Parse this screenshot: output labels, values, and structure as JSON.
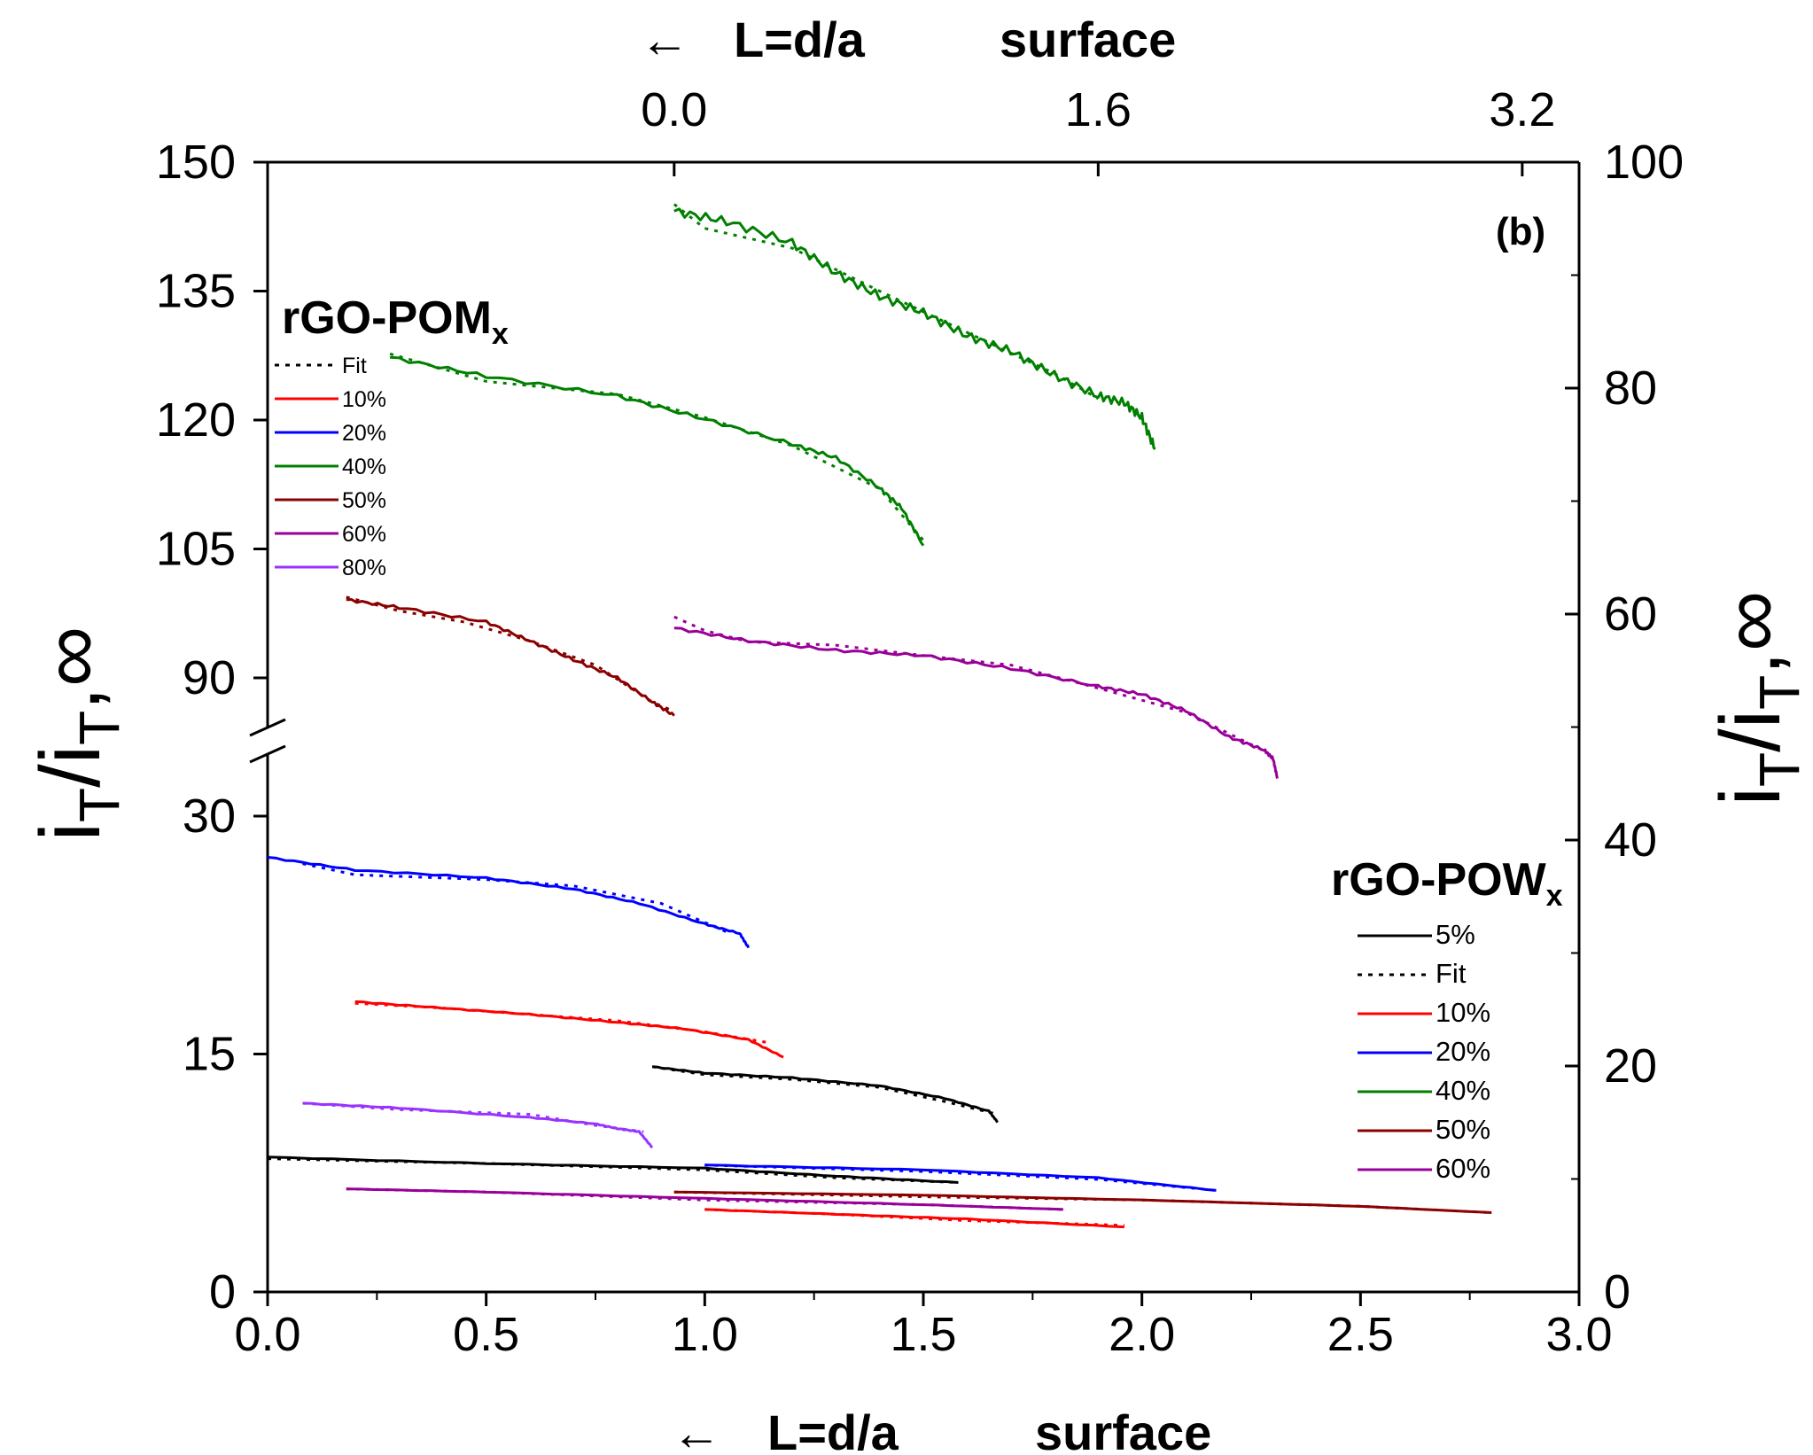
{
  "chart_data": {
    "type": "line",
    "panel_label": "(b)",
    "bottom_axis": {
      "arrow": "←",
      "label_left": "L=d/a",
      "label_right": "surface",
      "ticks": [
        "0.0",
        "0.5",
        "1.0",
        "1.5",
        "2.0",
        "2.5",
        "3.0"
      ],
      "xlim": [
        0,
        3
      ]
    },
    "top_axis": {
      "arrow": "←",
      "label_left": "L=d/a",
      "label_right": "surface",
      "ticks": [
        "0.0",
        "1.6",
        "3.2"
      ]
    },
    "left_axis": {
      "label_main": "i",
      "label_sub": "T",
      "label_mid": "/i",
      "label_sub2": "T",
      "label_end": ",∞",
      "lower_ticks": [
        "0",
        "15",
        "30"
      ],
      "upper_ticks": [
        "90",
        "105",
        "120",
        "135",
        "150"
      ],
      "lower_range": [
        0,
        30
      ],
      "upper_range": [
        90,
        150
      ],
      "break": true
    },
    "right_axis": {
      "label_main": "i",
      "label_sub": "T",
      "label_mid": "/i",
      "label_sub2": "T",
      "label_end": ",∞",
      "ticks": [
        "0",
        "20",
        "40",
        "60",
        "80",
        "100"
      ],
      "range": [
        0,
        100
      ]
    },
    "legend_pom": {
      "title": "rGO-POM",
      "subscript": "x",
      "entries": [
        {
          "label": "Fit",
          "style": "dotted",
          "color": "#000000"
        },
        {
          "label": "10%",
          "style": "solid",
          "color": "#ff0000"
        },
        {
          "label": "20%",
          "style": "solid",
          "color": "#0000ff"
        },
        {
          "label": "40%",
          "style": "solid",
          "color": "#008000"
        },
        {
          "label": "50%",
          "style": "solid",
          "color": "#8b0000"
        },
        {
          "label": "60%",
          "style": "solid",
          "color": "#990099"
        },
        {
          "label": "80%",
          "style": "solid",
          "color": "#9933ff"
        }
      ]
    },
    "legend_pow": {
      "title": "rGO-POW",
      "subscript": "x",
      "entries": [
        {
          "label": "5%",
          "style": "solid",
          "color": "#000000"
        },
        {
          "label": "Fit",
          "style": "dotted",
          "color": "#000000"
        },
        {
          "label": "10%",
          "style": "solid",
          "color": "#ff0000"
        },
        {
          "label": "20%",
          "style": "solid",
          "color": "#0000ff"
        },
        {
          "label": "40%",
          "style": "solid",
          "color": "#008000"
        },
        {
          "label": "50%",
          "style": "solid",
          "color": "#8b0000"
        },
        {
          "label": "60%",
          "style": "solid",
          "color": "#990099"
        }
      ]
    },
    "series": [
      {
        "name": "POM 40% (top)",
        "color": "#008000",
        "axis": "upper",
        "wobble": 1.0,
        "points": [
          [
            0.93,
            144.3
          ],
          [
            1.05,
            143.1
          ],
          [
            1.2,
            140.6
          ],
          [
            1.3,
            137.1
          ],
          [
            1.4,
            134.4
          ],
          [
            1.5,
            132.5
          ],
          [
            1.6,
            129.8
          ],
          [
            1.7,
            128.0
          ],
          [
            1.8,
            125.2
          ],
          [
            1.9,
            122.8
          ],
          [
            1.96,
            122.0
          ],
          [
            2.0,
            120.3
          ],
          [
            2.03,
            116.6
          ]
        ],
        "fit": [
          [
            0.93,
            145.1
          ],
          [
            1.0,
            142.3
          ],
          [
            1.2,
            140.0
          ],
          [
            1.4,
            135.0
          ],
          [
            1.6,
            130.2
          ],
          [
            1.8,
            125.4
          ],
          [
            1.9,
            122.5
          ]
        ]
      },
      {
        "name": "POM 40% (bottom)",
        "color": "#008000",
        "axis": "upper",
        "wobble": 0.4,
        "points": [
          [
            0.28,
            127.3
          ],
          [
            0.5,
            125.1
          ],
          [
            0.8,
            122.8
          ],
          [
            1.0,
            120.1
          ],
          [
            1.2,
            117.2
          ],
          [
            1.3,
            115.6
          ],
          [
            1.4,
            112.1
          ],
          [
            1.45,
            109.8
          ],
          [
            1.5,
            105.4
          ]
        ],
        "fit": [
          [
            0.28,
            127.7
          ],
          [
            0.5,
            124.5
          ],
          [
            0.8,
            123.0
          ],
          [
            1.0,
            120.3
          ],
          [
            1.2,
            117.0
          ],
          [
            1.4,
            112.0
          ],
          [
            1.5,
            106.0
          ]
        ]
      },
      {
        "name": "POM 50%",
        "color": "#8b0000",
        "axis": "upper",
        "wobble": 0.3,
        "points": [
          [
            0.18,
            99.1
          ],
          [
            0.3,
            98.2
          ],
          [
            0.5,
            96.5
          ],
          [
            0.6,
            94.3
          ],
          [
            0.7,
            92.1
          ],
          [
            0.8,
            90.0
          ],
          [
            0.88,
            87.2
          ],
          [
            0.93,
            85.6
          ]
        ],
        "fit": [
          [
            0.18,
            99.4
          ],
          [
            0.3,
            97.8
          ],
          [
            0.45,
            96.5
          ],
          [
            0.6,
            94.3
          ],
          [
            0.75,
            91.5
          ],
          [
            0.88,
            87.2
          ],
          [
            0.93,
            86.1
          ]
        ]
      },
      {
        "name": "POM 60%",
        "color": "#990099",
        "axis": "upper",
        "wobble": 0.3,
        "points": [
          [
            0.93,
            95.8
          ],
          [
            1.1,
            94.3
          ],
          [
            1.3,
            93.2
          ],
          [
            1.5,
            92.6
          ],
          [
            1.7,
            91.1
          ],
          [
            1.9,
            89.0
          ],
          [
            2.0,
            88.1
          ],
          [
            2.1,
            86.2
          ],
          [
            2.2,
            83.1
          ],
          [
            2.28,
            81.6
          ],
          [
            2.3,
            80.6
          ],
          [
            2.31,
            78.3
          ]
        ],
        "fit": [
          [
            0.93,
            97.1
          ],
          [
            1.0,
            95.5
          ],
          [
            1.1,
            94.2
          ],
          [
            1.3,
            93.8
          ],
          [
            1.5,
            92.6
          ],
          [
            1.7,
            91.5
          ],
          [
            1.9,
            88.8
          ],
          [
            2.1,
            86.0
          ],
          [
            2.28,
            81.5
          ]
        ]
      },
      {
        "name": "POM 20%",
        "color": "#0000ff",
        "axis": "lower",
        "wobble": 0.08,
        "points": [
          [
            0.0,
            27.4
          ],
          [
            0.2,
            26.6
          ],
          [
            0.5,
            26.1
          ],
          [
            0.7,
            25.4
          ],
          [
            0.85,
            24.5
          ],
          [
            1.0,
            23.2
          ],
          [
            1.08,
            22.6
          ],
          [
            1.1,
            21.7
          ]
        ],
        "fit": [
          [
            0.08,
            27.0
          ],
          [
            0.2,
            26.3
          ],
          [
            0.5,
            26.0
          ],
          [
            0.7,
            25.6
          ],
          [
            0.9,
            24.5
          ],
          [
            1.05,
            22.7
          ]
        ]
      },
      {
        "name": "POM 10%",
        "color": "#ff0000",
        "axis": "lower",
        "wobble": 0.06,
        "points": [
          [
            0.2,
            18.3
          ],
          [
            0.4,
            17.9
          ],
          [
            0.6,
            17.5
          ],
          [
            0.8,
            17.0
          ],
          [
            0.95,
            16.6
          ],
          [
            1.1,
            15.9
          ],
          [
            1.18,
            14.8
          ]
        ],
        "fit": [
          [
            0.2,
            18.2
          ],
          [
            0.4,
            17.9
          ],
          [
            0.6,
            17.5
          ],
          [
            0.8,
            17.1
          ],
          [
            1.0,
            16.4
          ],
          [
            1.15,
            15.7
          ]
        ]
      },
      {
        "name": "POW 5% (upper)",
        "color": "#000000",
        "axis": "lower",
        "wobble": 0.05,
        "points": [
          [
            0.88,
            14.2
          ],
          [
            1.0,
            13.8
          ],
          [
            1.2,
            13.5
          ],
          [
            1.4,
            13.0
          ],
          [
            1.55,
            12.2
          ],
          [
            1.65,
            11.4
          ],
          [
            1.67,
            10.7
          ]
        ],
        "fit": [
          [
            0.88,
            14.2
          ],
          [
            1.0,
            13.7
          ],
          [
            1.2,
            13.4
          ],
          [
            1.4,
            12.9
          ],
          [
            1.55,
            12.0
          ],
          [
            1.67,
            11.2
          ]
        ]
      },
      {
        "name": "POM 80%",
        "color": "#9933ff",
        "axis": "lower",
        "wobble": 0.05,
        "points": [
          [
            0.08,
            11.9
          ],
          [
            0.3,
            11.6
          ],
          [
            0.6,
            11.0
          ],
          [
            0.75,
            10.6
          ],
          [
            0.8,
            10.3
          ],
          [
            0.85,
            10.1
          ],
          [
            0.88,
            9.1
          ]
        ],
        "fit": [
          [
            0.08,
            11.9
          ],
          [
            0.3,
            11.5
          ],
          [
            0.6,
            11.2
          ],
          [
            0.75,
            10.5
          ],
          [
            0.86,
            10.1
          ]
        ]
      },
      {
        "name": "POW 5% (lower)",
        "color": "#000000",
        "axis": "lower",
        "wobble": 0.03,
        "points": [
          [
            0.0,
            8.5
          ],
          [
            0.5,
            8.1
          ],
          [
            1.0,
            7.8
          ],
          [
            1.3,
            7.3
          ],
          [
            1.58,
            6.9
          ]
        ],
        "fit": [
          [
            0.0,
            8.4
          ],
          [
            0.5,
            8.1
          ],
          [
            1.0,
            7.7
          ],
          [
            1.3,
            7.2
          ],
          [
            1.58,
            6.9
          ]
        ]
      },
      {
        "name": "POW 20%",
        "color": "#0000ff",
        "axis": "lower",
        "wobble": 0.03,
        "points": [
          [
            1.0,
            8.0
          ],
          [
            1.5,
            7.7
          ],
          [
            1.9,
            7.2
          ],
          [
            2.17,
            6.4
          ]
        ],
        "fit": [
          [
            1.0,
            8.0
          ],
          [
            1.5,
            7.6
          ],
          [
            1.9,
            7.1
          ],
          [
            2.17,
            6.4
          ]
        ]
      },
      {
        "name": "POW 60%",
        "color": "#990099",
        "axis": "lower",
        "wobble": 0.02,
        "points": [
          [
            0.18,
            6.5
          ],
          [
            0.5,
            6.3
          ],
          [
            1.0,
            5.9
          ],
          [
            1.5,
            5.5
          ],
          [
            1.82,
            5.2
          ]
        ],
        "fit": [
          [
            0.18,
            6.5
          ],
          [
            0.5,
            6.3
          ],
          [
            1.0,
            5.8
          ],
          [
            1.5,
            5.5
          ],
          [
            1.82,
            5.2
          ]
        ]
      },
      {
        "name": "POW 50%",
        "color": "#8b0000",
        "axis": "lower",
        "wobble": 0.01,
        "points": [
          [
            0.93,
            6.3
          ],
          [
            1.5,
            6.1
          ],
          [
            2.0,
            5.8
          ],
          [
            2.5,
            5.4
          ],
          [
            2.8,
            5.0
          ]
        ],
        "fit": [
          [
            0.93,
            6.3
          ],
          [
            1.5,
            6.0
          ],
          [
            2.0,
            5.8
          ],
          [
            2.5,
            5.4
          ],
          [
            2.8,
            5.0
          ]
        ]
      },
      {
        "name": "POW 10%",
        "color": "#ff0000",
        "axis": "lower",
        "wobble": 0.03,
        "points": [
          [
            1.0,
            5.2
          ],
          [
            1.3,
            4.9
          ],
          [
            1.6,
            4.6
          ],
          [
            1.96,
            4.1
          ]
        ],
        "fit": [
          [
            1.0,
            5.2
          ],
          [
            1.3,
            4.9
          ],
          [
            1.6,
            4.5
          ],
          [
            1.96,
            4.2
          ]
        ]
      }
    ]
  }
}
